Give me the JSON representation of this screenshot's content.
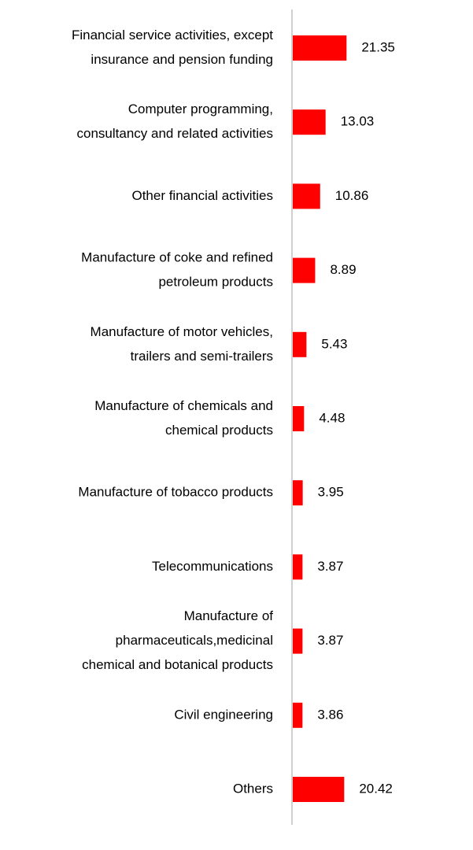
{
  "chart_data": {
    "type": "bar",
    "orientation": "horizontal",
    "categories": [
      [
        "Financial service activities, except",
        "insurance and pension funding"
      ],
      [
        "Computer programming,",
        "consultancy and related activities"
      ],
      [
        "Other financial activities"
      ],
      [
        "Manufacture of coke and refined",
        "petroleum products"
      ],
      [
        "Manufacture of motor vehicles,",
        "trailers and semi-trailers"
      ],
      [
        "Manufacture of chemicals and",
        "chemical products"
      ],
      [
        "Manufacture of tobacco products"
      ],
      [
        "Telecommunications"
      ],
      [
        "Manufacture of",
        "pharmaceuticals,medicinal",
        "chemical and botanical products"
      ],
      [
        "Civil engineering"
      ],
      [
        "Others"
      ]
    ],
    "values": [
      21.35,
      13.03,
      10.86,
      8.89,
      5.43,
      4.48,
      3.95,
      3.87,
      3.87,
      3.86,
      20.42
    ],
    "value_labels": [
      "21.35",
      "13.03",
      "10.86",
      "8.89",
      "5.43",
      "4.48",
      "3.95",
      "3.87",
      "3.87",
      "3.86",
      "20.42"
    ],
    "bar_color": "#ff0000",
    "axis_color": "#d0d0d0",
    "xlim": [
      0,
      25
    ],
    "grid": false,
    "legend": "none",
    "title": "",
    "xlabel": "",
    "ylabel": ""
  }
}
